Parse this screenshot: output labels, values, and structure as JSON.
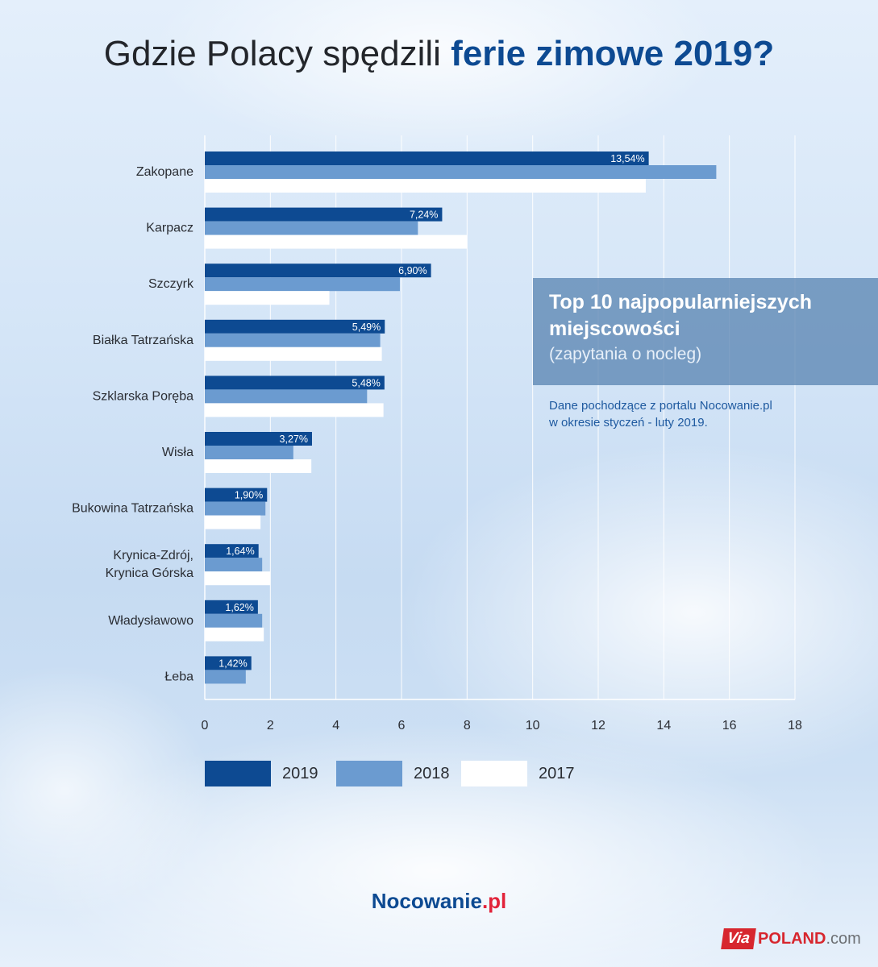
{
  "title": {
    "normal": "Gdzie Polacy spędzili ",
    "bold": "ferie zimowe 2019?"
  },
  "info": {
    "title_line1": "Top 10 najpopularniejszych",
    "title_line2": "miejscowości",
    "subtitle": "(zapytania o nocleg)",
    "source_line1": "Dane pochodzące z portalu Nocowanie.pl",
    "source_line2": "w okresie styczeń - luty 2019."
  },
  "brand": {
    "name": "Nocowanie",
    "suffix": ".pl"
  },
  "footer_logo": {
    "mark": "Via",
    "word": "POLAND",
    "domain": ".com"
  },
  "colors": {
    "s2019": "#0d4a92",
    "s2018": "#6b9bd0",
    "s2017": "#ffffff",
    "title_accent": "#0d4a92"
  },
  "chart_data": {
    "type": "bar",
    "orientation": "horizontal",
    "categories": [
      "Zakopane",
      "Karpacz",
      "Szczyrk",
      "Białka Tatrzańska",
      "Szklarska Poręba",
      "Wisła",
      "Bukowina Tatrzańska",
      "Krynica-Zdrój,\nKrynica Górska",
      "Władysławowo",
      "Łeba"
    ],
    "series": [
      {
        "name": "2019",
        "color": "#0d4a92",
        "values": [
          13.54,
          7.24,
          6.9,
          5.49,
          5.48,
          3.27,
          1.9,
          1.64,
          1.62,
          1.42
        ],
        "labels": [
          "13,54%",
          "7,24%",
          "6,90%",
          "5,49%",
          "5,48%",
          "3,27%",
          "1,90%",
          "1,64%",
          "1,62%",
          "1,42%"
        ]
      },
      {
        "name": "2018",
        "color": "#6b9bd0",
        "values": [
          15.6,
          6.5,
          5.95,
          5.35,
          4.95,
          2.7,
          1.85,
          1.75,
          1.75,
          1.25
        ]
      },
      {
        "name": "2017",
        "color": "#ffffff",
        "values": [
          13.45,
          8.0,
          3.8,
          5.4,
          5.45,
          3.25,
          1.7,
          2.0,
          1.8,
          0
        ]
      }
    ],
    "xlim": [
      0,
      18
    ],
    "xticks": [
      0,
      2,
      4,
      6,
      8,
      10,
      12,
      14,
      16,
      18
    ],
    "grid": true,
    "legend": "bottom"
  }
}
